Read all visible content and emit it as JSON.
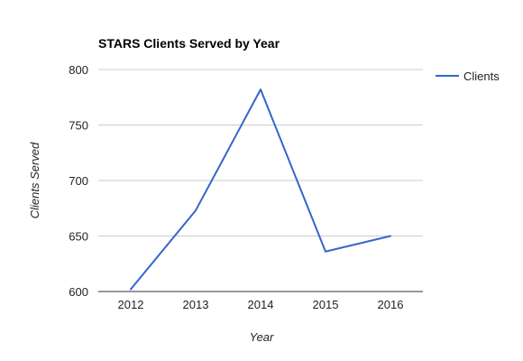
{
  "chart_data": {
    "type": "line",
    "title": "STARS Clients Served by Year",
    "xlabel": "Year",
    "ylabel": "Clients Served",
    "categories": [
      "2012",
      "2013",
      "2014",
      "2015",
      "2016"
    ],
    "series": [
      {
        "name": "Clients",
        "values": [
          602,
          673,
          782,
          636,
          650
        ],
        "color": "#3366cc"
      }
    ],
    "ylim": [
      600,
      800
    ],
    "yticks": [
      "600",
      "650",
      "700",
      "750",
      "800"
    ],
    "grid": true,
    "legend_position": "right"
  }
}
